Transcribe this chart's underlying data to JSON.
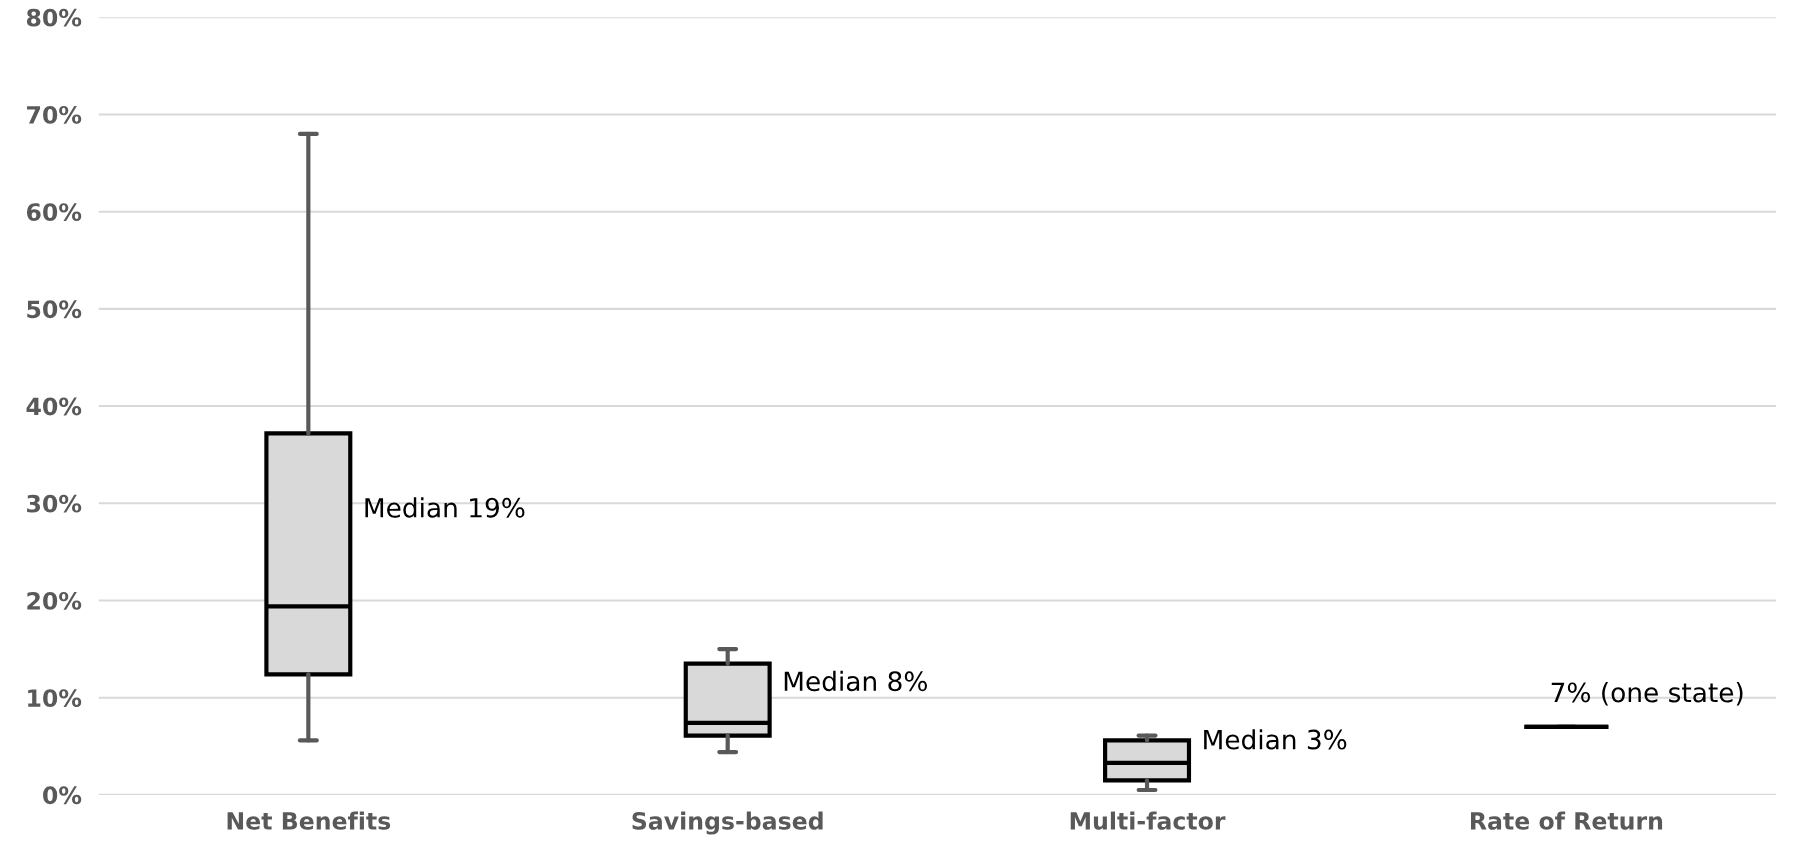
{
  "chart_data": {
    "type": "box",
    "categories": [
      "Net Benefits",
      "Savings-based",
      "Multi-factor",
      "Rate of Return"
    ],
    "boxes": [
      {
        "low": 5.6,
        "q1": 12.4,
        "median": 19.4,
        "q3": 37.2,
        "high": 68
      },
      {
        "low": 4.4,
        "q1": 6.1,
        "median": 7.4,
        "q3": 13.5,
        "high": 15
      },
      {
        "low": 0.5,
        "q1": 1.5,
        "median": 3.3,
        "q3": 5.6,
        "high": 6.1
      },
      {
        "low": 7,
        "q1": 7,
        "median": 7,
        "q3": 7,
        "high": 7
      }
    ],
    "colors": [
      "#d9d9d9",
      "#d9d9d9",
      "#d9d9d9",
      "#000000"
    ],
    "ylim": [
      0,
      80
    ],
    "yticks": [
      {
        "value": 0,
        "label": "0%"
      },
      {
        "value": 10,
        "label": "10%"
      },
      {
        "value": 20,
        "label": "20%"
      },
      {
        "value": 30,
        "label": "30%"
      },
      {
        "value": 40,
        "label": "40%"
      },
      {
        "value": 50,
        "label": "50%"
      },
      {
        "value": 60,
        "label": "60%"
      },
      {
        "value": 70,
        "label": "70%"
      },
      {
        "value": 80,
        "label": "80%"
      }
    ],
    "grid": "y",
    "annotations": [
      "Median 19%",
      "Median 8%",
      "Median 3%",
      "7% (one state)"
    ]
  }
}
